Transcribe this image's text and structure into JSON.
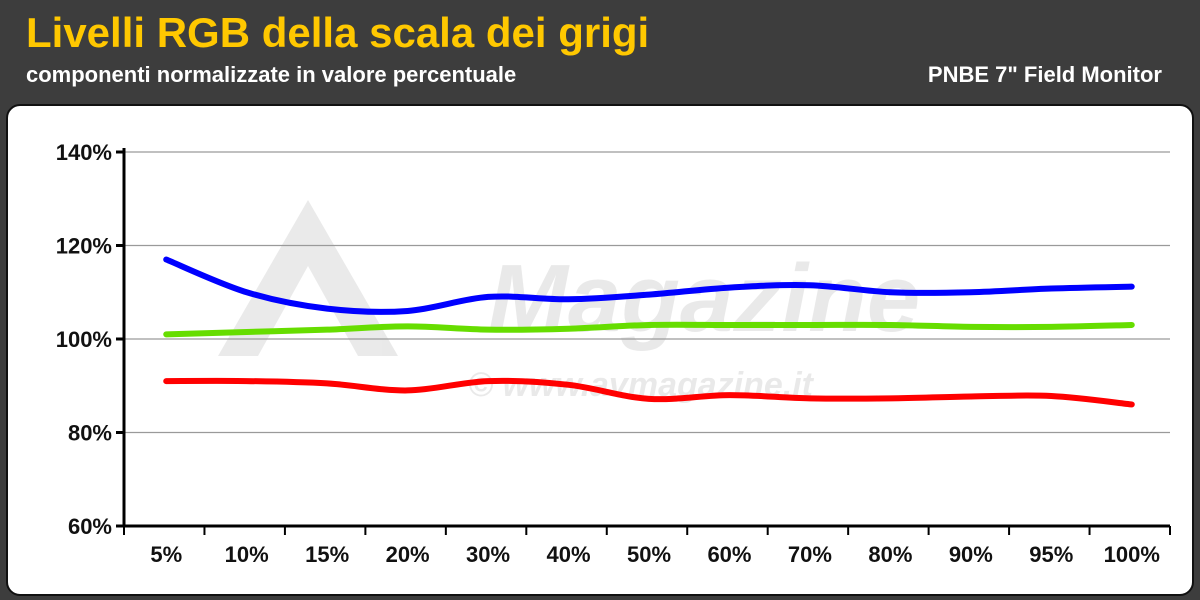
{
  "header": {
    "title": "Livelli RGB della scala dei grigi",
    "subtitle": "componenti normalizzate in valore percentuale",
    "device": "PNBE 7\" Field Monitor"
  },
  "watermark": {
    "brand": "Magazine",
    "site": "© www.avmagazine.it"
  },
  "colors": {
    "header_bg": "#3d3d3d",
    "title": "#ffc800",
    "red_series": "#ff0000",
    "green_series": "#66dd00",
    "blue_series": "#0000ff"
  },
  "chart_data": {
    "type": "line",
    "title": "Livelli RGB della scala dei grigi",
    "subtitle": "componenti normalizzate in valore percentuale",
    "xlabel": "",
    "ylabel": "",
    "categories": [
      "5%",
      "10%",
      "15%",
      "20%",
      "30%",
      "40%",
      "50%",
      "60%",
      "70%",
      "80%",
      "90%",
      "95%",
      "100%"
    ],
    "yticks": [
      "60%",
      "80%",
      "100%",
      "120%",
      "140%"
    ],
    "ylim": [
      60,
      140
    ],
    "grid": true,
    "legend": "none",
    "series": [
      {
        "color": "#0000ff",
        "values": [
          117,
          110,
          106.5,
          106,
          109,
          108.5,
          109.5,
          111,
          111.5,
          110,
          110,
          110.8,
          111.2
        ]
      },
      {
        "color": "#66dd00",
        "values": [
          101,
          101.5,
          102,
          102.7,
          102,
          102.2,
          103,
          103,
          103,
          103,
          102.6,
          102.6,
          103
        ]
      },
      {
        "color": "#ff0000",
        "values": [
          91,
          91,
          90.5,
          89,
          91,
          90.2,
          87.2,
          88,
          87.3,
          87.3,
          87.7,
          87.8,
          86
        ]
      }
    ]
  }
}
